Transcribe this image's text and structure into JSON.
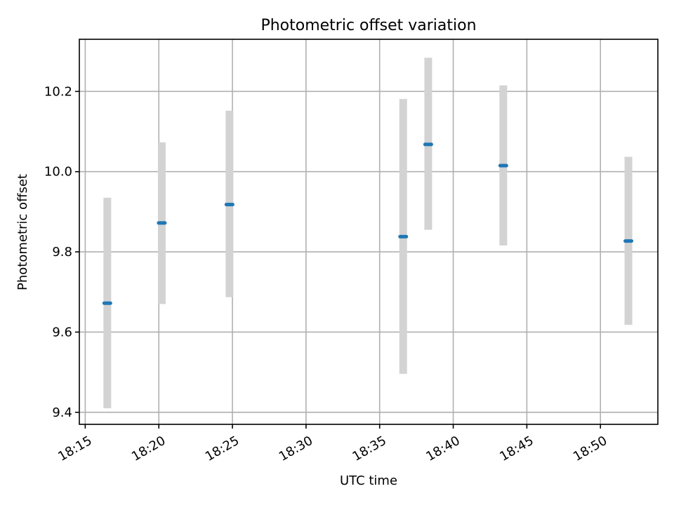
{
  "chart_data": {
    "type": "scatter",
    "title": "Photometric offset variation",
    "xlabel": "UTC time",
    "ylabel": "Photometric offset",
    "x_ticks": [
      "18:15",
      "18:20",
      "18:25",
      "18:30",
      "18:35",
      "18:40",
      "18:45",
      "18:50"
    ],
    "y_ticks": [
      "9.4",
      "9.6",
      "9.8",
      "10.0",
      "10.2"
    ],
    "xlim": [
      "18:14.6",
      "18:53.9"
    ],
    "ylim": [
      9.37,
      10.33
    ],
    "grid": true,
    "colors": {
      "point": "#1f77b4",
      "errorbar": "#d3d3d3",
      "grid": "#b0b0b0"
    },
    "points": [
      {
        "x": "18:16.5",
        "y": 9.672,
        "y_low": 9.41,
        "y_high": 9.935
      },
      {
        "x": "18:20.2",
        "y": 9.872,
        "y_low": 9.67,
        "y_high": 10.073
      },
      {
        "x": "18:24.8",
        "y": 9.918,
        "y_low": 9.687,
        "y_high": 10.152
      },
      {
        "x": "18:36.6",
        "y": 9.838,
        "y_low": 9.496,
        "y_high": 10.181
      },
      {
        "x": "18:38.3",
        "y": 10.068,
        "y_low": 9.855,
        "y_high": 10.284
      },
      {
        "x": "18:43.4",
        "y": 10.015,
        "y_low": 9.816,
        "y_high": 10.215
      },
      {
        "x": "18:51.9",
        "y": 9.827,
        "y_low": 9.618,
        "y_high": 10.037
      }
    ]
  }
}
